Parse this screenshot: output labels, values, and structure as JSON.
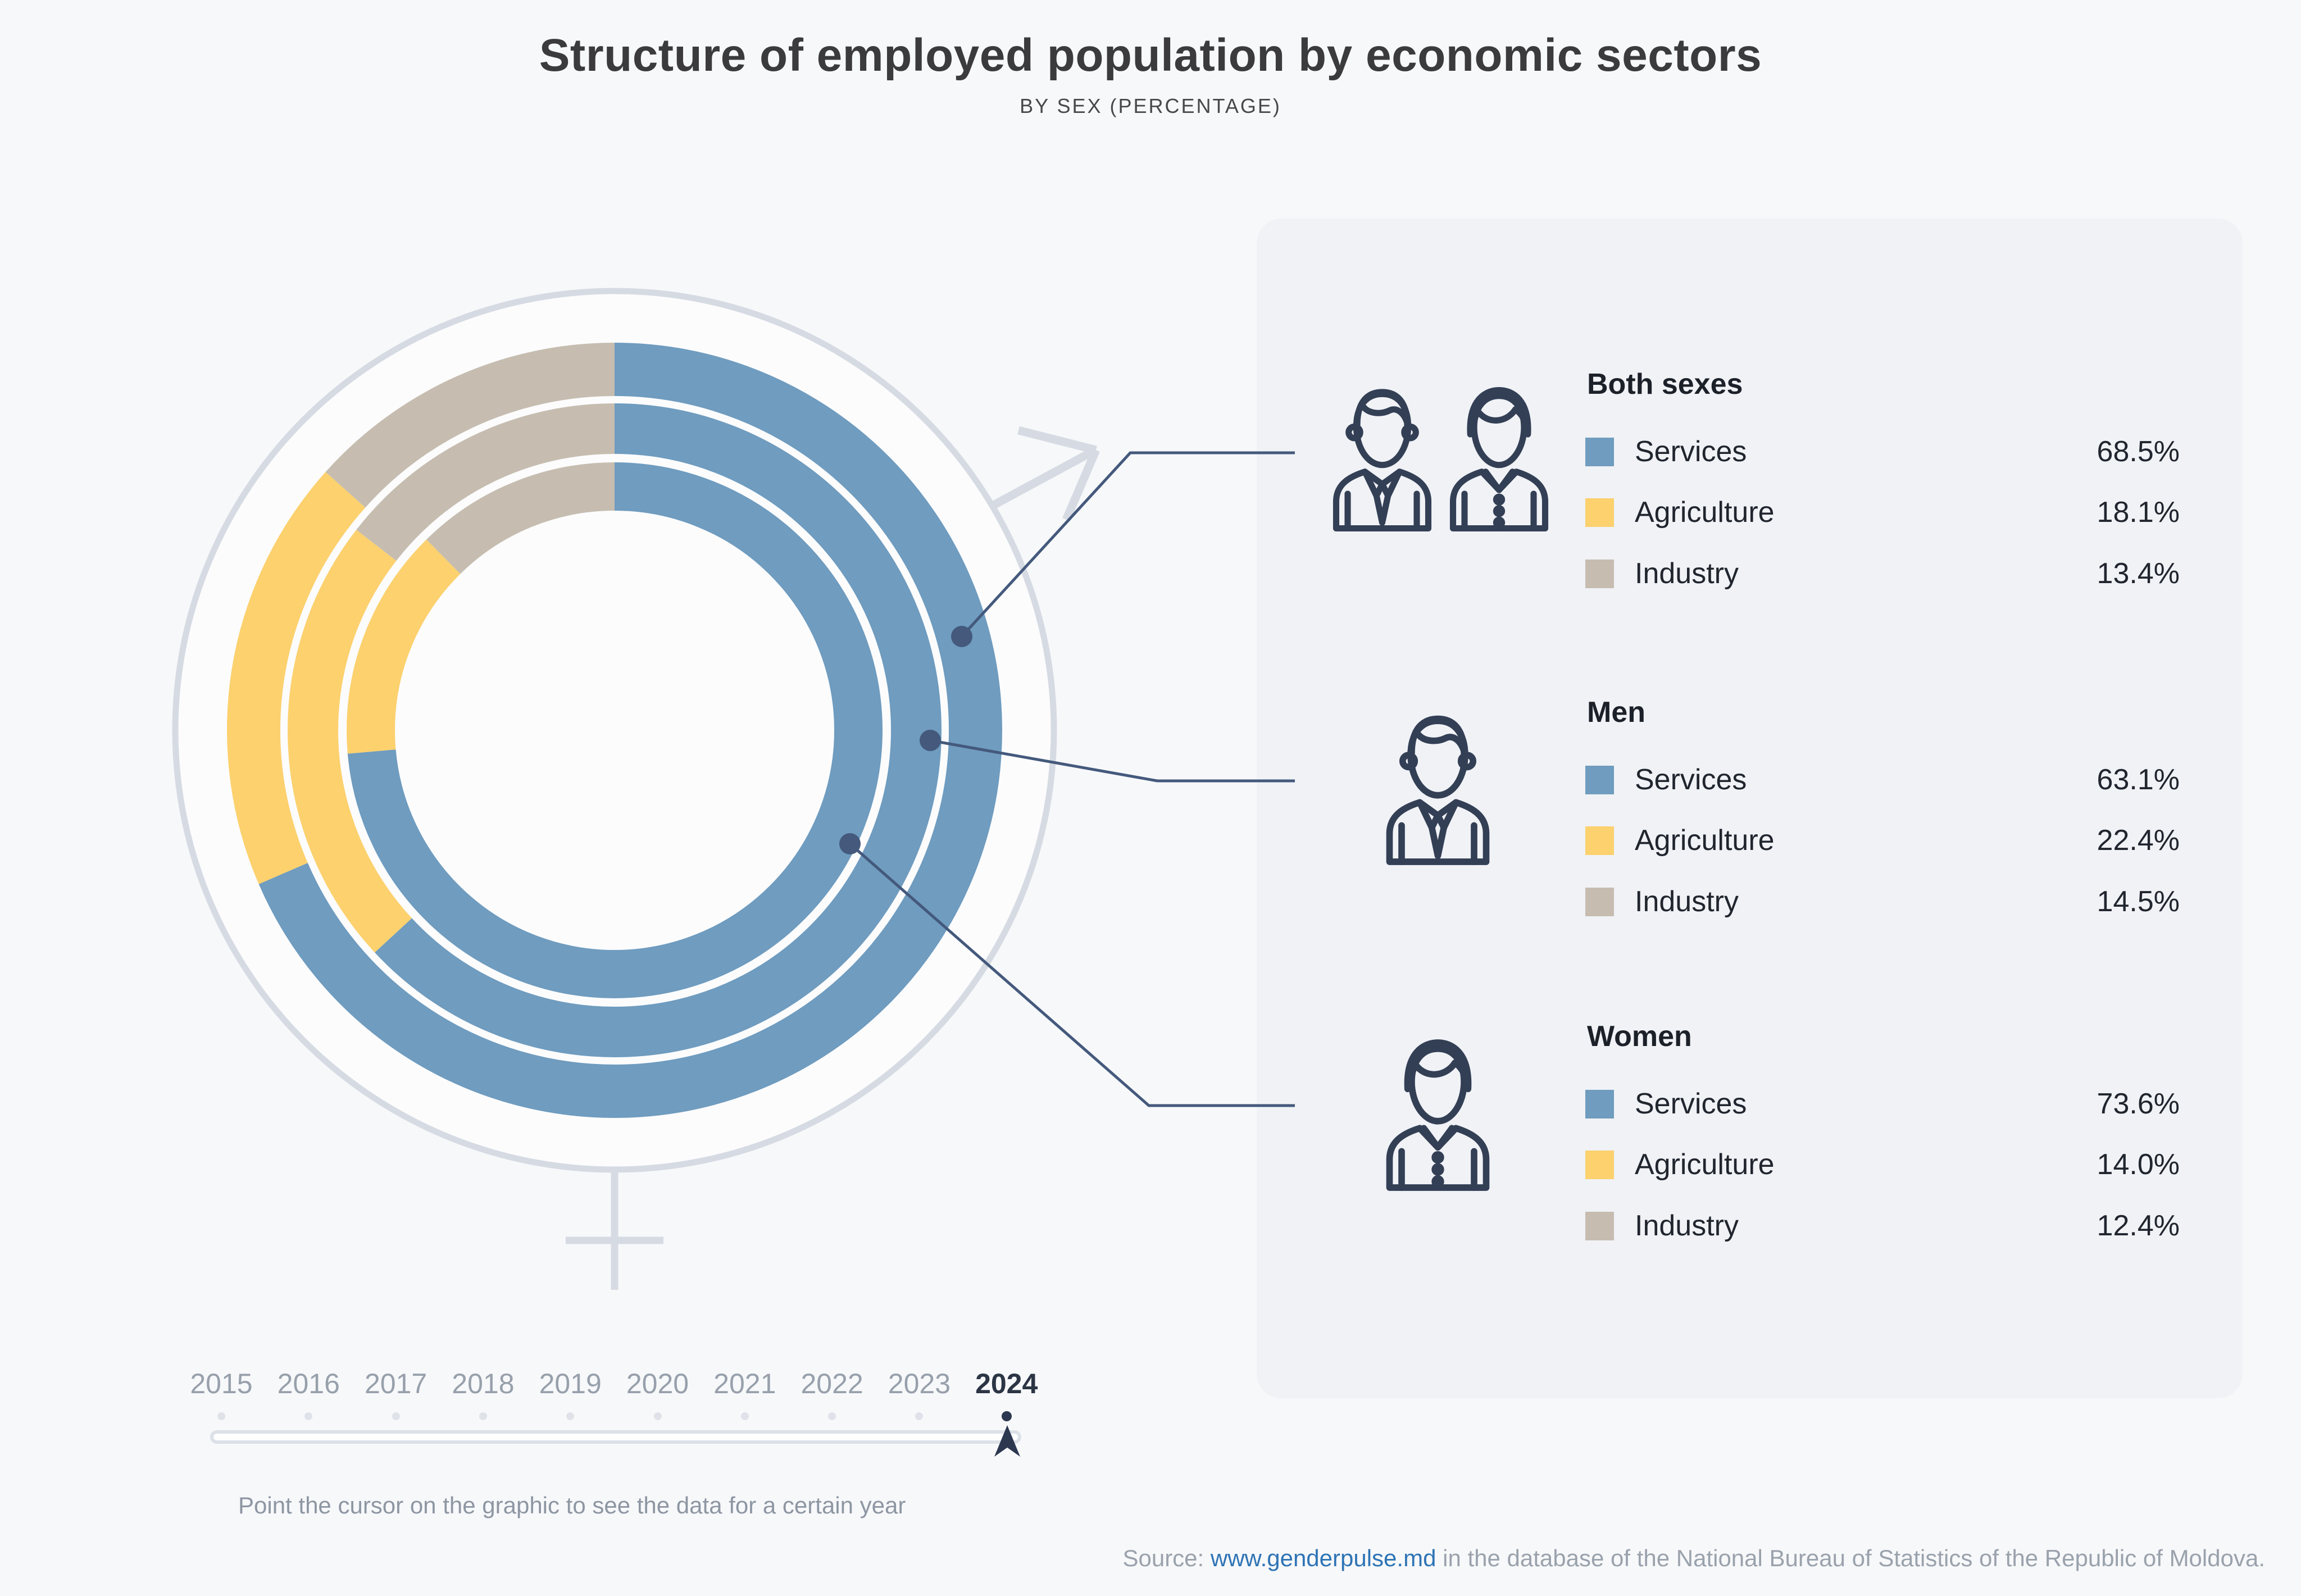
{
  "title": "Structure of employed population by economic sectors",
  "subtitle": "BY SEX (PERCENTAGE)",
  "chart_data": {
    "type": "pie",
    "variant": "multi-ring-donut",
    "unit": "%",
    "active_year": "2024",
    "direction": "clockwise",
    "start_angle_deg": 0,
    "sectors": [
      "Services",
      "Agriculture",
      "Industry"
    ],
    "sector_keys": [
      "services",
      "agriculture",
      "industry"
    ],
    "rings": [
      {
        "name": "Both sexes",
        "position": "outer",
        "values": [
          68.5,
          18.1,
          13.4
        ]
      },
      {
        "name": "Men",
        "position": "middle",
        "values": [
          63.1,
          22.4,
          14.5
        ]
      },
      {
        "name": "Women",
        "position": "inner",
        "values": [
          73.6,
          14.0,
          12.4
        ]
      }
    ]
  },
  "legend": {
    "groups": [
      {
        "name": "Both sexes",
        "icon": "both-sexes-icon",
        "rows": [
          {
            "key": "services",
            "label": "Services",
            "value": "68.5%"
          },
          {
            "key": "agriculture",
            "label": "Agriculture",
            "value": "18.1%"
          },
          {
            "key": "industry",
            "label": "Industry",
            "value": "13.4%"
          }
        ]
      },
      {
        "name": "Men",
        "icon": "man-icon",
        "rows": [
          {
            "key": "services",
            "label": "Services",
            "value": "63.1%"
          },
          {
            "key": "agriculture",
            "label": "Agriculture",
            "value": "22.4%"
          },
          {
            "key": "industry",
            "label": "Industry",
            "value": "14.5%"
          }
        ]
      },
      {
        "name": "Women",
        "icon": "woman-icon",
        "rows": [
          {
            "key": "services",
            "label": "Services",
            "value": "73.6%"
          },
          {
            "key": "agriculture",
            "label": "Agriculture",
            "value": "14.0%"
          },
          {
            "key": "industry",
            "label": "Industry",
            "value": "12.4%"
          }
        ]
      }
    ]
  },
  "timeline": {
    "years": [
      "2015",
      "2016",
      "2017",
      "2018",
      "2019",
      "2020",
      "2021",
      "2022",
      "2023",
      "2024"
    ],
    "active_year": "2024",
    "hint": "Point the cursor on the graphic to see the data for a certain year"
  },
  "source": {
    "prefix": "Source: ",
    "link": "www.genderpulse.md",
    "suffix": " in the database of the National Bureau of Statistics of the Republic of Moldova."
  },
  "colors": {
    "services": "#6F9CBF",
    "agriculture": "#FCD16E",
    "industry": "#C6BDB0",
    "accent_dark": "#2C3750",
    "connector": "#44597C",
    "gender_symbol": "#D6DBE3",
    "link": "#2E74B5",
    "panel_bg": "#F0F2F6",
    "page_bg": "#F7F8FA"
  }
}
